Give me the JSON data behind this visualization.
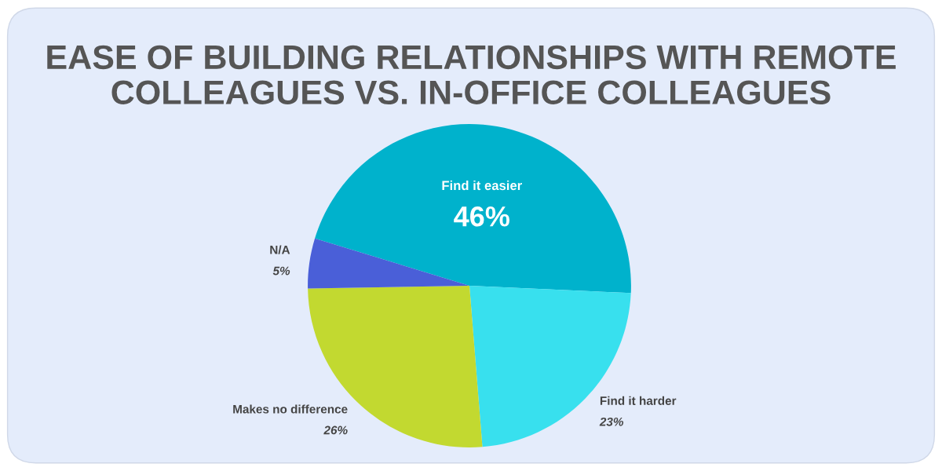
{
  "chart_data": {
    "type": "pie",
    "title": "EASE OF BUILDING RELATIONSHIPS WITH REMOTE\nCOLLEAGUES VS. IN-OFFICE COLLEAGUES",
    "categories": [
      "Find it easier",
      "Find it harder",
      "Makes no difference",
      "N/A"
    ],
    "values": [
      46,
      23,
      26,
      5
    ],
    "value_labels": [
      "46%",
      "23%",
      "26%",
      "5%"
    ],
    "colors": [
      "#00b2cc",
      "#38e0ee",
      "#c2d930",
      "#4a5fd8"
    ],
    "legend": false
  }
}
